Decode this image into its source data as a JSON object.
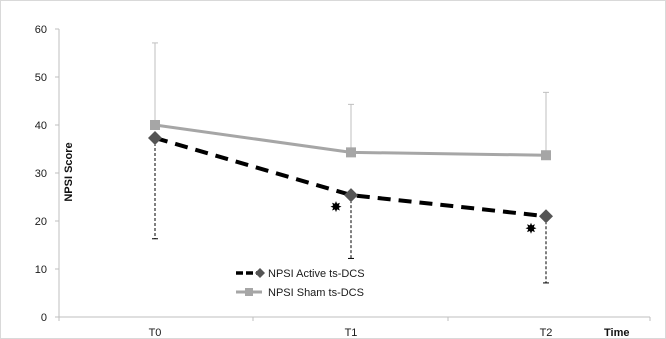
{
  "chart_data": {
    "type": "line",
    "categories": [
      "T0",
      "T1",
      "T2"
    ],
    "xlabel": "Time",
    "ylabel": "NPSI Score",
    "ylim": [
      0,
      60
    ],
    "yticks": [
      0,
      10,
      20,
      30,
      40,
      50,
      60
    ],
    "grid": false,
    "legend_position": "bottom-left",
    "series": [
      {
        "name": "NPSI Active  ts-DCS",
        "values": [
          37.3,
          25.4,
          21.0
        ],
        "error_lower": [
          21.0,
          13.2,
          13.9
        ],
        "line_style": "dashed",
        "marker": "diamond",
        "color": "#000000",
        "marker_color": "#555555"
      },
      {
        "name": "NPSI Sham ts-DCS",
        "values": [
          40.0,
          34.3,
          33.7
        ],
        "error_upper": [
          17.1,
          10.0,
          13.1
        ],
        "line_style": "solid",
        "marker": "square",
        "color": "#a6a6a6",
        "marker_color": "#a6a6a6"
      }
    ],
    "annotations": [
      {
        "category": "T1",
        "value": 23.0,
        "symbol": "star"
      },
      {
        "category": "T2",
        "value": 18.5,
        "symbol": "star"
      }
    ]
  }
}
